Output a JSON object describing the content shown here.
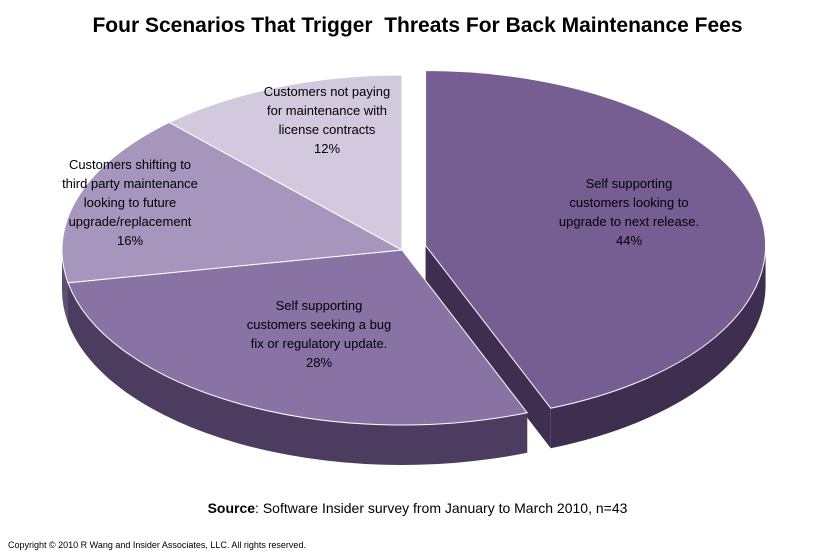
{
  "chart_data": {
    "type": "pie",
    "title": "Four Scenarios That Trigger  Threats For Back Maintenance Fees",
    "slices": [
      {
        "label_lines": [
          "Self supporting",
          "customers looking to",
          "upgrade to next release."
        ],
        "value_label": "44%",
        "value": 44,
        "color": "#765e92",
        "side": "#3e2f50",
        "exploded": true
      },
      {
        "label_lines": [
          "Self supporting",
          "customers seeking a bug",
          "fix or regulatory update."
        ],
        "value_label": "28%",
        "value": 28,
        "color": "#8873a4",
        "side": "#4b3c60",
        "exploded": false
      },
      {
        "label_lines": [
          "Customers shifting to",
          "third party maintenance",
          "looking to future",
          "upgrade/replacement"
        ],
        "value_label": "16%",
        "value": 16,
        "color": "#a695bd",
        "side": "#5e5070",
        "exploded": false
      },
      {
        "label_lines": [
          "Customers not paying",
          "for maintenance with",
          "license contracts"
        ],
        "value_label": "12%",
        "value": 12,
        "color": "#d2c9df",
        "side": "#8a7f98",
        "exploded": false
      }
    ]
  },
  "source": {
    "label": "Source",
    "text": ":  Software Insider survey from January to March 2010, n=43"
  },
  "copyright": "Copyright © 2010 R Wang and Insider Associates, LLC. All rights reserved."
}
